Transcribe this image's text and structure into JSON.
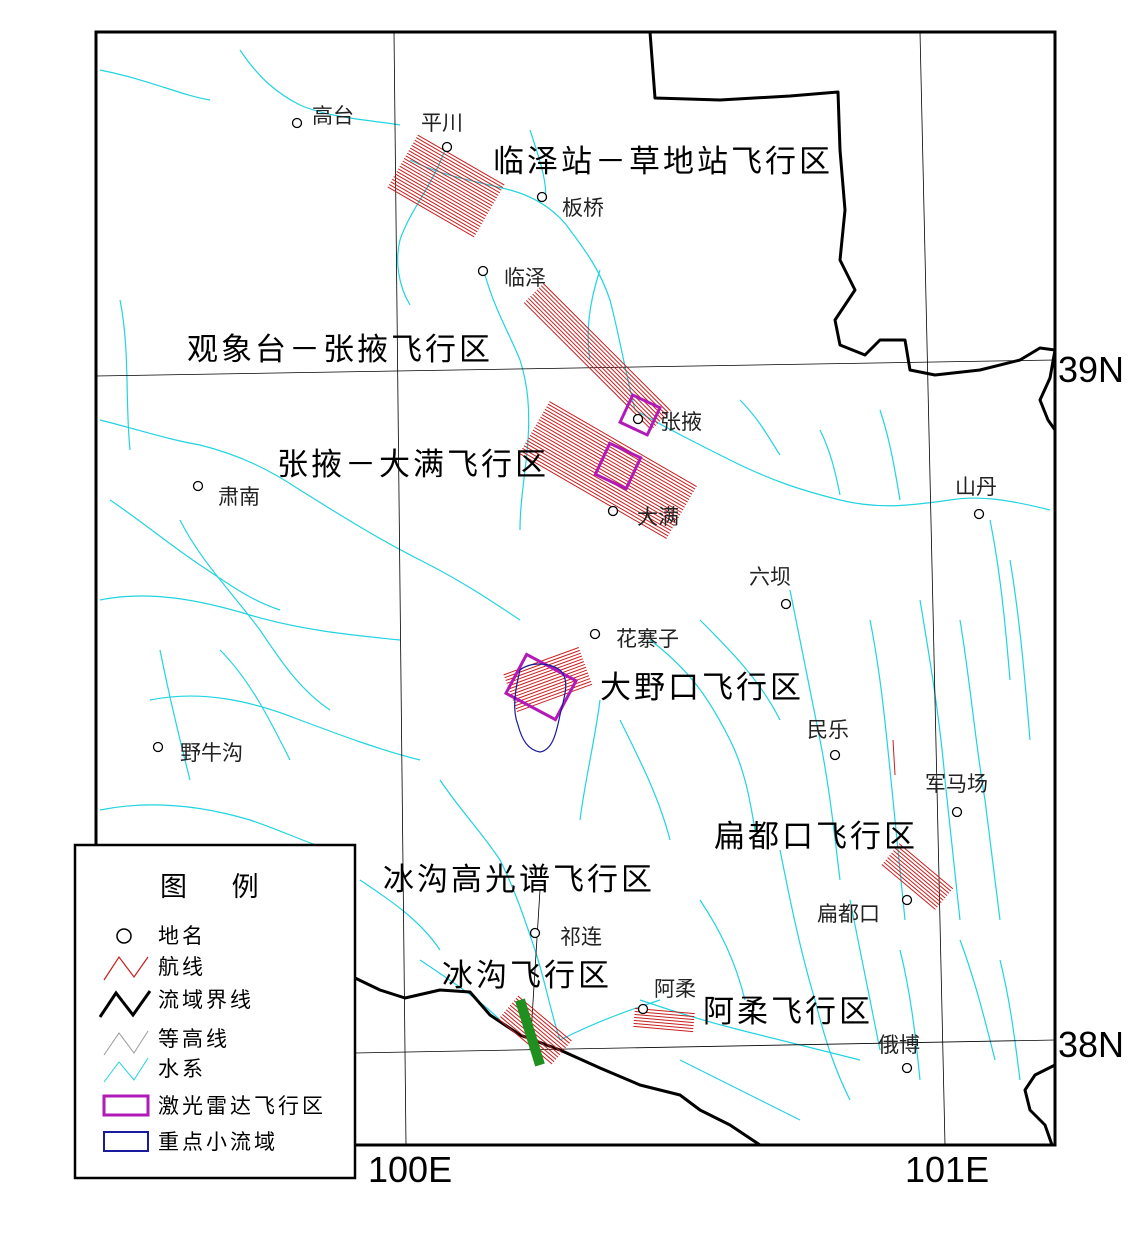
{
  "axes": {
    "lon_labels": [
      "100E",
      "101E"
    ],
    "lat_labels": [
      "39N",
      "38N"
    ]
  },
  "places": [
    {
      "name": "高台"
    },
    {
      "name": "平川"
    },
    {
      "name": "板桥"
    },
    {
      "name": "临泽"
    },
    {
      "name": "张掖"
    },
    {
      "name": "大满"
    },
    {
      "name": "肃南"
    },
    {
      "name": "山丹"
    },
    {
      "name": "六坝"
    },
    {
      "name": "花寨子"
    },
    {
      "name": "民乐"
    },
    {
      "name": "野牛沟"
    },
    {
      "name": "军马场"
    },
    {
      "name": "扁都口"
    },
    {
      "name": "祁连"
    },
    {
      "name": "阿柔"
    },
    {
      "name": "俄博"
    }
  ],
  "zones": [
    "临泽站－草地站飞行区",
    "观象台－张掖飞行区",
    "张掖－大满飞行区",
    "大野口飞行区",
    "扁都口飞行区",
    "冰沟高光谱飞行区",
    "冰沟飞行区",
    "阿柔飞行区"
  ],
  "legend": {
    "title": "图 例",
    "items": [
      {
        "label": "地名",
        "icon": "place-circle-icon"
      },
      {
        "label": "航线",
        "icon": "flight-line-icon",
        "color": "#c81e1e"
      },
      {
        "label": "流域界线",
        "icon": "basin-boundary-icon",
        "color": "#000000"
      },
      {
        "label": "等高线",
        "icon": "contour-icon",
        "color": "#9a9a9a"
      },
      {
        "label": "水系",
        "icon": "river-icon",
        "color": "#22d3e0"
      },
      {
        "label": "激光雷达飞行区",
        "icon": "lidar-box-icon",
        "color": "#b21ab8"
      },
      {
        "label": "重点小流域",
        "icon": "catchment-box-icon",
        "color": "#1a1a9c"
      }
    ]
  },
  "colors": {
    "river": "#22d3e0",
    "flight_line": "#c81e1e",
    "lidar": "#b21ab8",
    "catchment": "#1a1a9c",
    "basin": "#000000",
    "survey_line": "#1f8f1f"
  }
}
